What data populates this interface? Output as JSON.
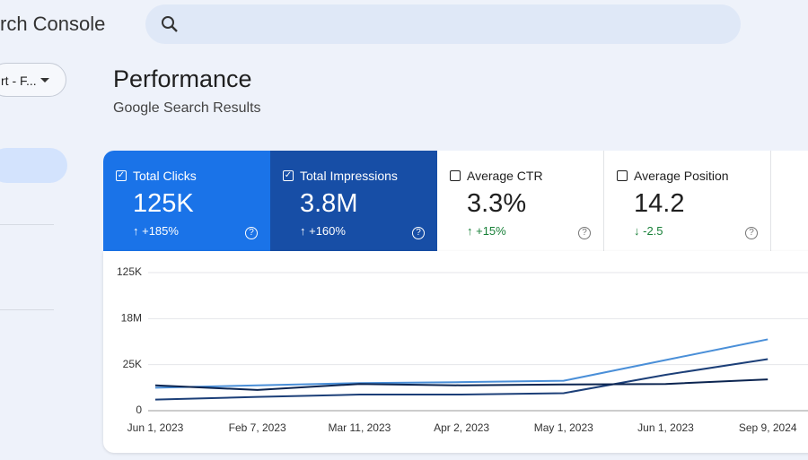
{
  "app": {
    "title": "rch Console",
    "property": "rt - F..."
  },
  "page": {
    "title": "Performance",
    "subtitle": "Google Search Results"
  },
  "cards": [
    {
      "label": "Total Clicks",
      "value": "125K",
      "change": "↑ +185%",
      "checked": true
    },
    {
      "label": "Total Impressions",
      "value": "3.8M",
      "change": "↑ +160%",
      "checked": true
    },
    {
      "label": "Average CTR",
      "value": "3.3%",
      "change": "↑ +15%",
      "checked": false
    },
    {
      "label": "Average Position",
      "value": "14.2",
      "change": "↓ -2.5",
      "checked": false
    }
  ],
  "chart_data": {
    "type": "line",
    "x": [
      "Jun 1, 2023",
      "Feb 7, 2023",
      "Mar 11, 2023",
      "Apr 2, 2023",
      "May 1, 2023",
      "Jun 1, 2023",
      "Sep 9, 2024"
    ],
    "ylim": [
      0,
      3
    ],
    "yticks": [
      {
        "value": 0,
        "label": "0"
      },
      {
        "value": 1,
        "label": "25K"
      },
      {
        "value": 2,
        "label": "18M"
      },
      {
        "value": 3,
        "label": "125K"
      }
    ],
    "grid": true,
    "series": [
      {
        "name": "Total Clicks",
        "color": "#4a8fd8",
        "values": [
          0.5,
          0.55,
          0.6,
          0.62,
          0.65,
          1.1,
          1.55
        ]
      },
      {
        "name": "Total Impressions",
        "color": "#1c3f78",
        "values": [
          0.24,
          0.3,
          0.35,
          0.35,
          0.38,
          0.78,
          1.12
        ]
      },
      {
        "name": "Average Position",
        "color": "#0b2450",
        "values": [
          0.55,
          0.45,
          0.58,
          0.55,
          0.57,
          0.58,
          0.68
        ]
      }
    ]
  }
}
